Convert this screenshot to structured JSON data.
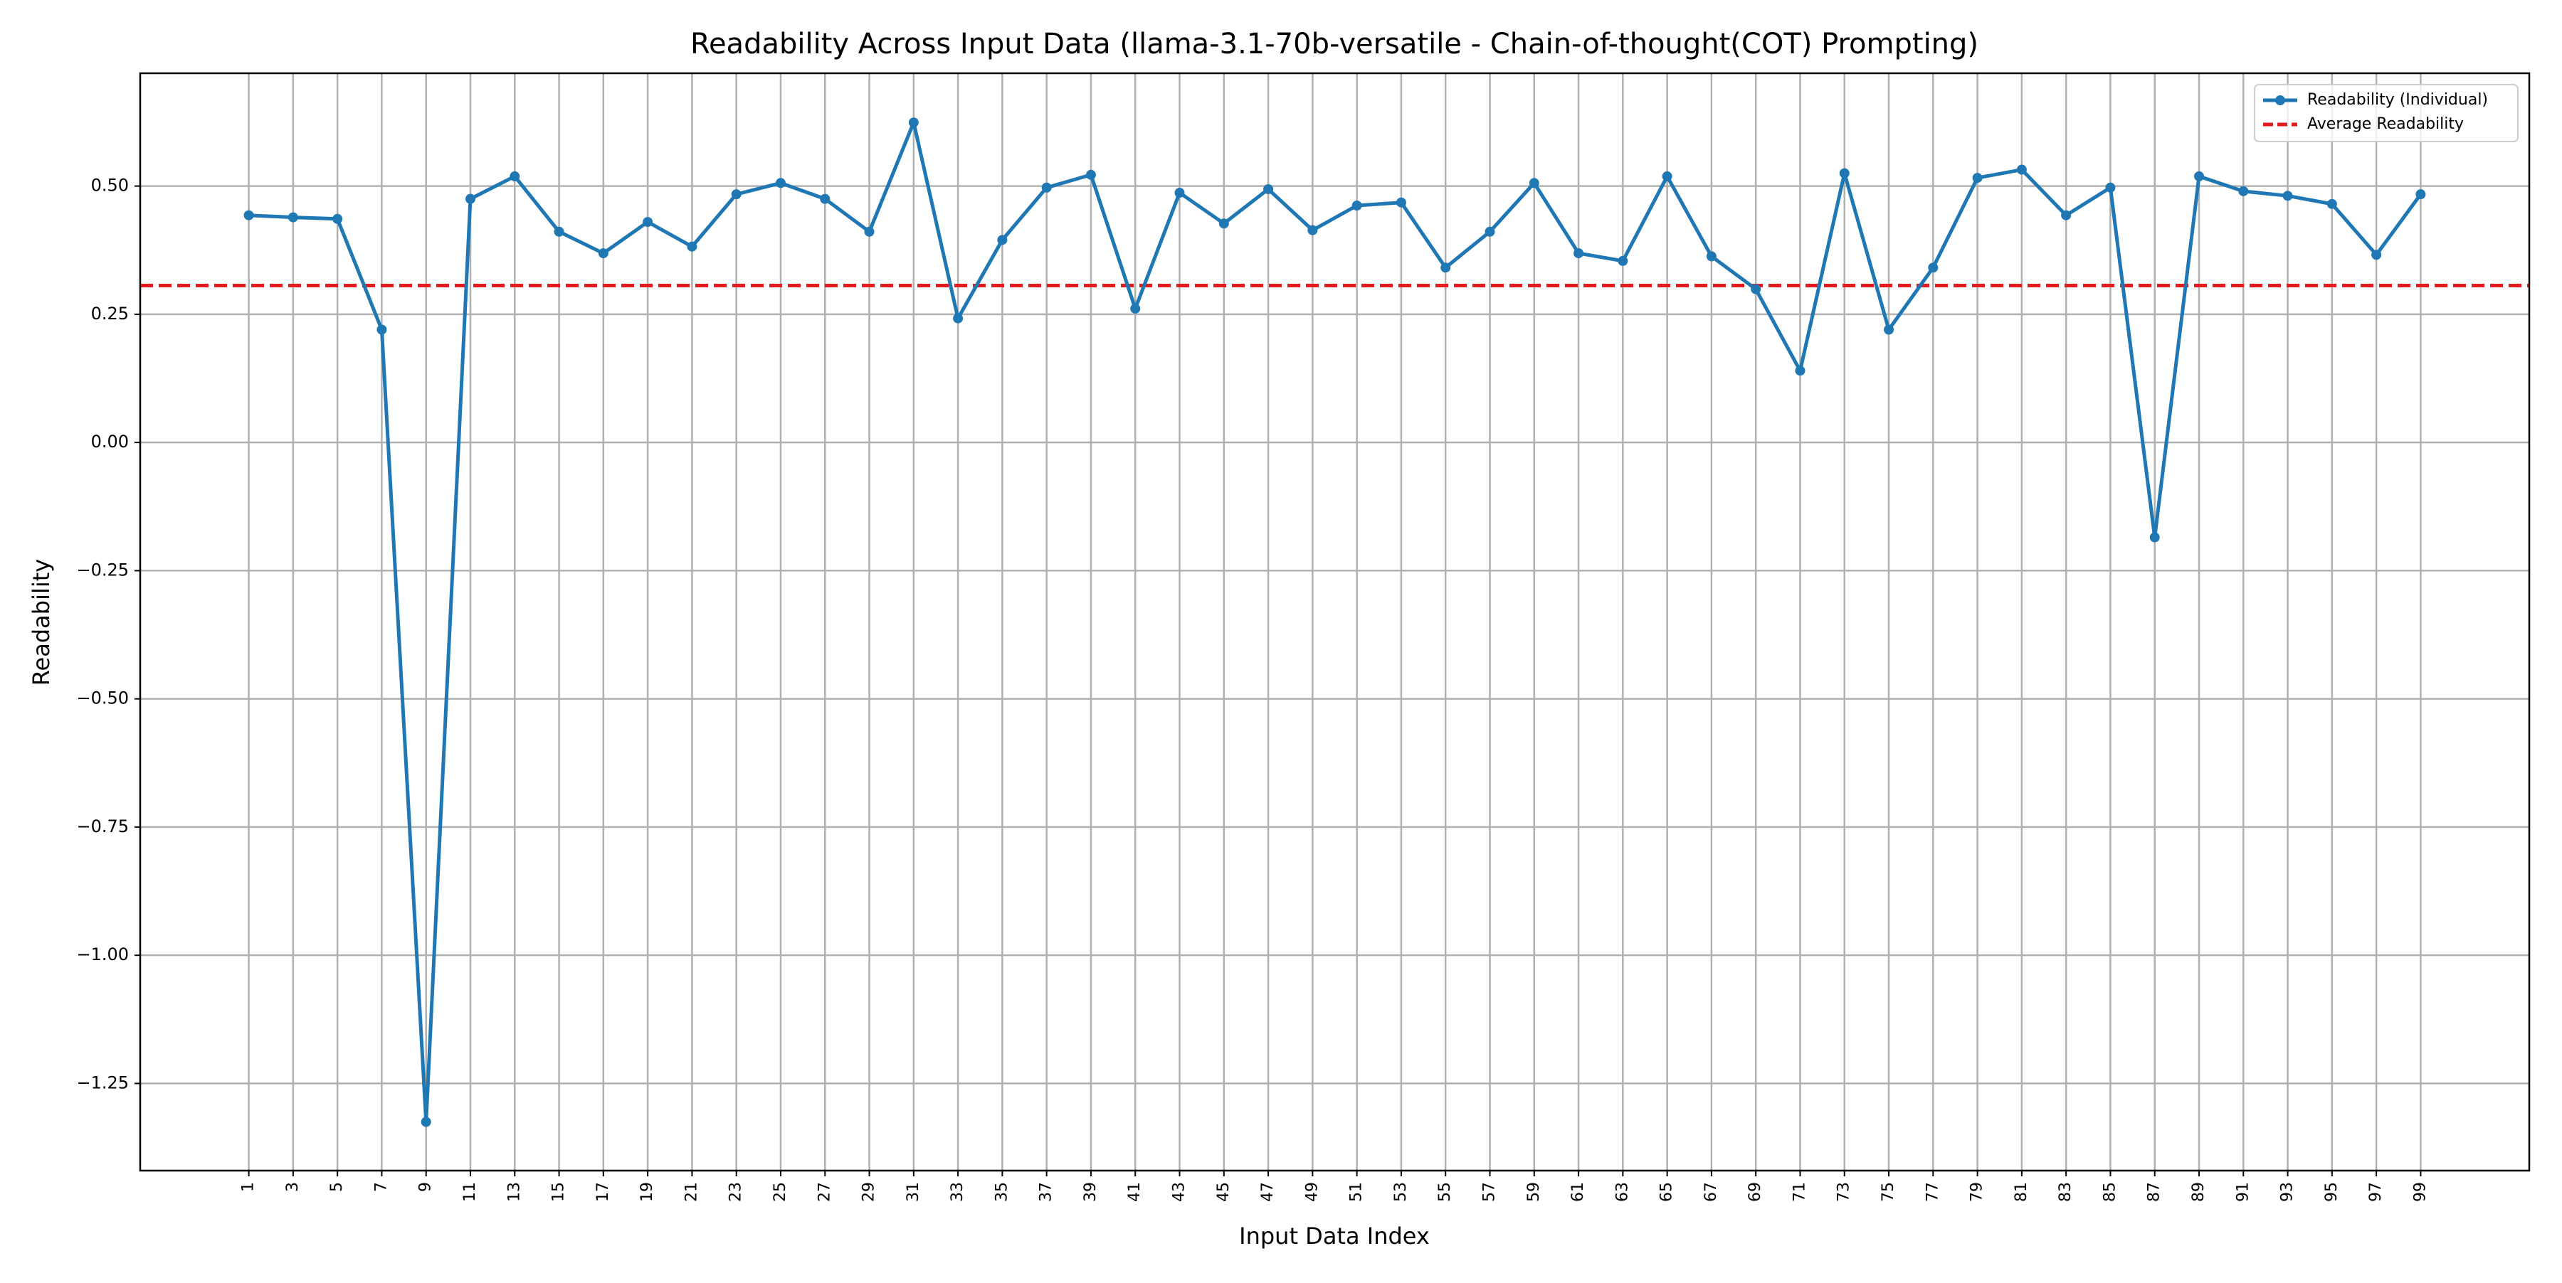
{
  "chart_data": {
    "type": "line",
    "title": "Readability Across Input Data (llama-3.1-70b-versatile - Chain-of-thought(COT) Prompting)",
    "xlabel": "Input Data Index",
    "ylabel": "Readability",
    "x": [
      1,
      3,
      5,
      7,
      9,
      11,
      13,
      15,
      17,
      19,
      21,
      23,
      25,
      27,
      29,
      31,
      33,
      35,
      37,
      39,
      41,
      43,
      45,
      47,
      49,
      51,
      53,
      55,
      57,
      59,
      61,
      63,
      65,
      67,
      69,
      71,
      73,
      75,
      77,
      79,
      81,
      83,
      85,
      87,
      89,
      91,
      93,
      95,
      97,
      99
    ],
    "series": [
      {
        "name": "Readability (Individual)",
        "color": "#1f77b4",
        "values": [
          0.443,
          0.439,
          0.436,
          0.22,
          -1.325,
          0.475,
          0.519,
          0.411,
          0.369,
          0.43,
          0.382,
          0.484,
          0.506,
          0.475,
          0.411,
          0.624,
          0.242,
          0.395,
          0.497,
          0.522,
          0.261,
          0.487,
          0.427,
          0.494,
          0.414,
          0.462,
          0.468,
          0.341,
          0.411,
          0.506,
          0.369,
          0.354,
          0.519,
          0.363,
          0.299,
          0.14,
          0.525,
          0.22,
          0.341,
          0.516,
          0.532,
          0.443,
          0.497,
          -0.185,
          0.519,
          0.49,
          0.481,
          0.465,
          0.366,
          0.484
        ]
      }
    ],
    "average": {
      "name": "Average Readability",
      "color": "#e41a1c",
      "value": 0.306
    },
    "xlim": [
      -3.9,
      103.9
    ],
    "ylim": [
      -1.42,
      0.72
    ],
    "xticks": [
      1,
      3,
      5,
      7,
      9,
      11,
      13,
      15,
      17,
      19,
      21,
      23,
      25,
      27,
      29,
      31,
      33,
      35,
      37,
      39,
      41,
      43,
      45,
      47,
      49,
      51,
      53,
      55,
      57,
      59,
      61,
      63,
      65,
      67,
      69,
      71,
      73,
      75,
      77,
      79,
      81,
      83,
      85,
      87,
      89,
      91,
      93,
      95,
      97,
      99
    ],
    "yticks": [
      {
        "value": -1.25,
        "label": "−1.25"
      },
      {
        "value": -1.0,
        "label": "−1.00"
      },
      {
        "value": -0.75,
        "label": "−0.75"
      },
      {
        "value": -0.5,
        "label": "−0.50"
      },
      {
        "value": -0.25,
        "label": "−0.25"
      },
      {
        "value": 0,
        "label": "0.00"
      },
      {
        "value": 0.25,
        "label": "0.25"
      },
      {
        "value": 0.5,
        "label": "0.50"
      }
    ],
    "grid": true,
    "legend": "upper right"
  }
}
